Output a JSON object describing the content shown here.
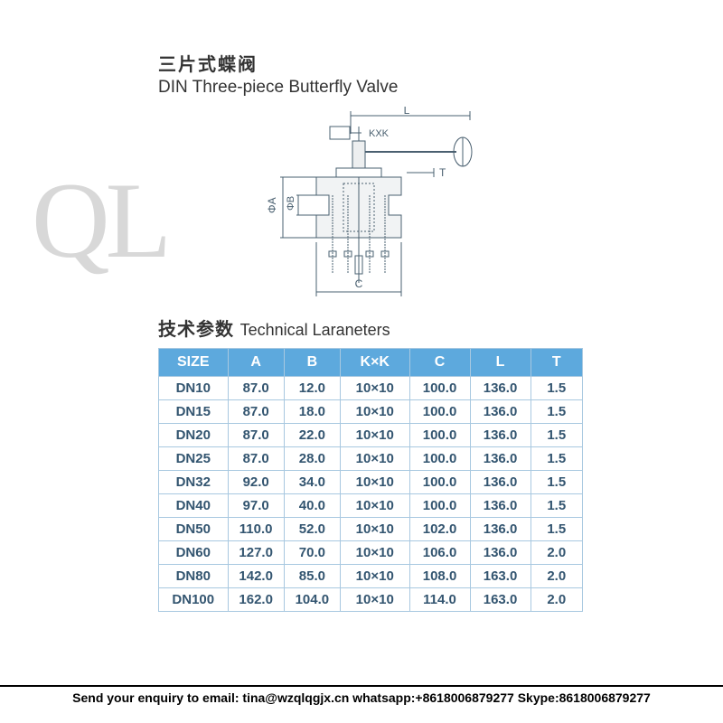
{
  "header": {
    "title_cn": "三片式蝶阀",
    "title_en": "DIN Three-piece Butterfly Valve",
    "watermark": "QL"
  },
  "section": {
    "title_cn": "技术参数",
    "title_en": "Technical Laraneters"
  },
  "diagram_labels": {
    "L": "L",
    "KxK": "KXK",
    "phiA": "ΦA",
    "phiB": "ΦB",
    "C": "C",
    "T": "T"
  },
  "table": {
    "columns": [
      "SIZE",
      "A",
      "B",
      "K×K",
      "C",
      "L",
      "T"
    ],
    "rows": [
      [
        "DN10",
        "87.0",
        "12.0",
        "10×10",
        "100.0",
        "136.0",
        "1.5"
      ],
      [
        "DN15",
        "87.0",
        "18.0",
        "10×10",
        "100.0",
        "136.0",
        "1.5"
      ],
      [
        "DN20",
        "87.0",
        "22.0",
        "10×10",
        "100.0",
        "136.0",
        "1.5"
      ],
      [
        "DN25",
        "87.0",
        "28.0",
        "10×10",
        "100.0",
        "136.0",
        "1.5"
      ],
      [
        "DN32",
        "92.0",
        "34.0",
        "10×10",
        "100.0",
        "136.0",
        "1.5"
      ],
      [
        "DN40",
        "97.0",
        "40.0",
        "10×10",
        "100.0",
        "136.0",
        "1.5"
      ],
      [
        "DN50",
        "110.0",
        "52.0",
        "10×10",
        "102.0",
        "136.0",
        "1.5"
      ],
      [
        "DN60",
        "127.0",
        "70.0",
        "10×10",
        "106.0",
        "136.0",
        "2.0"
      ],
      [
        "DN80",
        "142.0",
        "85.0",
        "10×10",
        "108.0",
        "163.0",
        "2.0"
      ],
      [
        "DN100",
        "162.0",
        "104.0",
        "10×10",
        "114.0",
        "163.0",
        "2.0"
      ]
    ],
    "header_bg": "#5da9dd",
    "header_fg": "#ffffff",
    "cell_fg": "#335570",
    "border_color": "#a8c8e0"
  },
  "footer": {
    "text": "Send your enquiry to email: tina@wzqlqgjx.cn   whatsapp:+8618006879277 Skype:8618006879277"
  }
}
